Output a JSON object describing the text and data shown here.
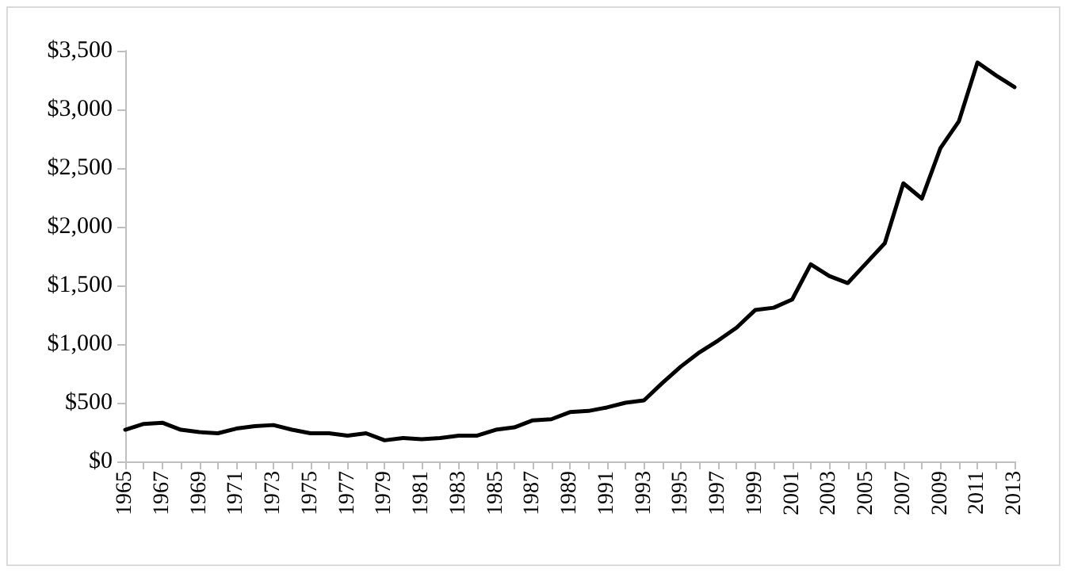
{
  "chart_data": {
    "type": "line",
    "categories": [
      "1965",
      null,
      "1967",
      null,
      "1969",
      null,
      "1971",
      null,
      "1973",
      null,
      "1975",
      null,
      "1977",
      null,
      "1979",
      null,
      "1981",
      null,
      "1983",
      null,
      "1985",
      null,
      "1987",
      null,
      "1989",
      null,
      "1991",
      null,
      "1993",
      null,
      "1995",
      null,
      "1997",
      null,
      "1999",
      null,
      "2001",
      null,
      "2003",
      null,
      "2005",
      null,
      "2007",
      null,
      "2009",
      null,
      "2011",
      null,
      "2013"
    ],
    "series": [
      {
        "color": "#000000",
        "values": [
          270,
          320,
          330,
          270,
          250,
          240,
          280,
          300,
          310,
          270,
          240,
          240,
          220,
          240,
          180,
          200,
          190,
          200,
          220,
          220,
          270,
          290,
          350,
          360,
          420,
          430,
          460,
          500,
          520,
          670,
          810,
          930,
          1030,
          1140,
          1290,
          1310,
          1380,
          1680,
          1580,
          1520,
          1690,
          1860,
          2370,
          2240,
          2670,
          2900,
          3400,
          3290,
          3190
        ]
      }
    ],
    "ylim": [
      0,
      3500
    ],
    "yticks": [
      {
        "value": 0,
        "label": "$0"
      },
      {
        "value": 500,
        "label": "$500"
      },
      {
        "value": 1000,
        "label": "$1,000"
      },
      {
        "value": 1500,
        "label": "$1,500"
      },
      {
        "value": 2000,
        "label": "$2,000"
      },
      {
        "value": 2500,
        "label": "$2,500"
      },
      {
        "value": 3000,
        "label": "$3,000"
      },
      {
        "value": 3500,
        "label": "$3,500"
      }
    ],
    "grid": false,
    "marker": "none",
    "line_style": "solid"
  }
}
